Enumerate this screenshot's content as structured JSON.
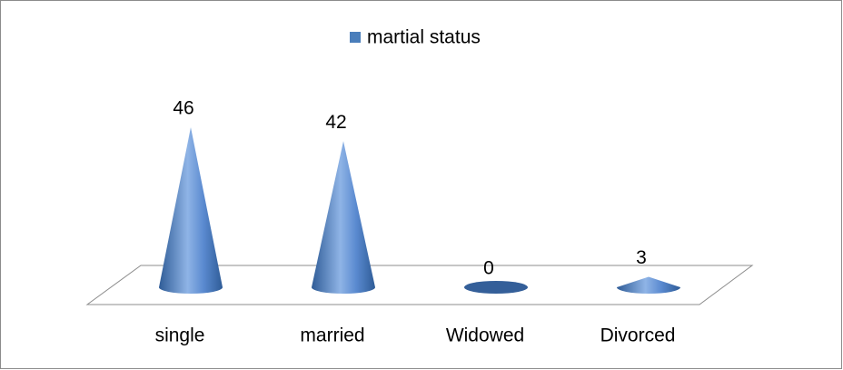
{
  "chart_data": {
    "type": "cone",
    "legend": "martial status",
    "categories": [
      "single",
      "married",
      "Widowed",
      "Divorced"
    ],
    "series": [
      {
        "name": "martial status",
        "color": "#4a7ebb",
        "values": [
          46,
          42,
          0,
          3
        ]
      }
    ]
  }
}
